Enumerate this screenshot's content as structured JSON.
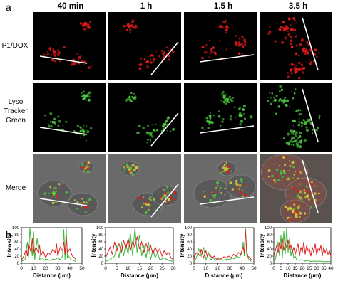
{
  "panel_a_label": "a",
  "panel_b_label": "b",
  "columns": [
    "40 min",
    "1 h",
    "1.5 h",
    "3.5 h"
  ],
  "rows": [
    {
      "label_lines": [
        "P1/DOX"
      ],
      "channel": "red"
    },
    {
      "label_lines": [
        "Lyso",
        "Tracker",
        "Green"
      ],
      "channel": "green"
    },
    {
      "label_lines": [
        "Merge"
      ],
      "channel": "merge"
    }
  ],
  "colors": {
    "red": "#e11a1a",
    "green": "#49c43f",
    "line": "#ffffff",
    "plot_red": "#e02020",
    "plot_green": "#3cb83c"
  },
  "chart_data": [
    {
      "type": "line",
      "xlabel": "Distance (μm)",
      "ylabel": "Intensity",
      "xlim": [
        0,
        50
      ],
      "ylim": [
        0,
        100
      ],
      "xticks": [
        0,
        10,
        20,
        30,
        40,
        50
      ],
      "yticks": [
        0,
        20,
        40,
        60,
        80,
        100
      ],
      "series": [
        {
          "color": "green",
          "x": [
            0,
            3,
            5,
            6,
            7,
            9,
            10,
            11,
            13,
            15,
            17,
            19,
            20,
            22,
            24,
            26,
            28,
            30,
            32,
            34,
            35,
            36,
            37,
            38,
            39,
            41,
            43,
            45
          ],
          "y": [
            5,
            10,
            60,
            15,
            100,
            20,
            90,
            10,
            70,
            10,
            15,
            8,
            12,
            10,
            8,
            12,
            10,
            15,
            10,
            20,
            95,
            10,
            100,
            15,
            20,
            10,
            8,
            5
          ]
        },
        {
          "color": "red",
          "x": [
            0,
            2,
            4,
            5,
            6,
            8,
            9,
            10,
            12,
            14,
            15,
            16,
            18,
            20,
            22,
            24,
            26,
            28,
            29,
            30,
            32,
            34,
            35,
            36,
            37,
            38,
            40,
            42,
            44,
            45
          ],
          "y": [
            8,
            20,
            40,
            20,
            55,
            30,
            70,
            25,
            45,
            30,
            50,
            20,
            35,
            15,
            30,
            25,
            40,
            30,
            55,
            20,
            45,
            35,
            60,
            25,
            75,
            30,
            40,
            20,
            15,
            10
          ]
        }
      ]
    },
    {
      "type": "line",
      "xlabel": "Distance (μm)",
      "ylabel": "Intensity",
      "xlim": [
        0,
        30
      ],
      "ylim": [
        0,
        100
      ],
      "xticks": [
        0,
        5,
        10,
        15,
        20,
        25,
        30
      ],
      "yticks": [
        0,
        20,
        40,
        60,
        80,
        100
      ],
      "series": [
        {
          "color": "green",
          "x": [
            0,
            2,
            4,
            5,
            6,
            7,
            8,
            9,
            10,
            11,
            12,
            13,
            14,
            15,
            16,
            17,
            18,
            19,
            20,
            21,
            22,
            23,
            24,
            26,
            28,
            30
          ],
          "y": [
            5,
            10,
            20,
            50,
            15,
            60,
            20,
            55,
            25,
            85,
            20,
            100,
            30,
            80,
            20,
            50,
            15,
            60,
            10,
            40,
            15,
            30,
            10,
            15,
            8,
            5
          ]
        },
        {
          "color": "red",
          "x": [
            0,
            1,
            2,
            3,
            4,
            5,
            6,
            7,
            8,
            9,
            10,
            11,
            12,
            13,
            14,
            15,
            16,
            17,
            18,
            19,
            20,
            21,
            22,
            23,
            24,
            25,
            26,
            27,
            28,
            29,
            30
          ],
          "y": [
            15,
            30,
            45,
            25,
            60,
            35,
            55,
            30,
            65,
            40,
            70,
            35,
            60,
            45,
            75,
            40,
            60,
            30,
            55,
            35,
            50,
            25,
            45,
            30,
            40,
            20,
            35,
            25,
            30,
            15,
            10
          ]
        }
      ]
    },
    {
      "type": "line",
      "xlabel": "Distance (μm)",
      "ylabel": "Intensity",
      "xlim": [
        0,
        50
      ],
      "ylim": [
        0,
        100
      ],
      "xticks": [
        0,
        10,
        20,
        30,
        40,
        50
      ],
      "yticks": [
        0,
        20,
        40,
        60,
        80,
        100
      ],
      "series": [
        {
          "color": "green",
          "x": [
            0,
            2,
            4,
            6,
            8,
            10,
            12,
            14,
            16,
            18,
            20,
            22,
            24,
            26,
            28,
            30,
            32,
            34,
            36,
            38,
            40,
            41,
            42,
            43,
            44,
            46,
            48
          ],
          "y": [
            5,
            15,
            40,
            20,
            45,
            10,
            30,
            10,
            15,
            8,
            12,
            10,
            8,
            10,
            12,
            10,
            15,
            12,
            20,
            15,
            30,
            60,
            20,
            100,
            25,
            10,
            5
          ]
        },
        {
          "color": "red",
          "x": [
            0,
            1,
            3,
            5,
            6,
            8,
            10,
            11,
            13,
            15,
            17,
            19,
            21,
            23,
            25,
            27,
            29,
            31,
            33,
            35,
            37,
            39,
            41,
            42,
            43,
            44,
            45,
            47,
            48
          ],
          "y": [
            10,
            25,
            30,
            20,
            40,
            15,
            35,
            20,
            25,
            15,
            20,
            10,
            15,
            12,
            18,
            15,
            20,
            15,
            25,
            20,
            30,
            25,
            45,
            30,
            95,
            35,
            20,
            15,
            8
          ]
        }
      ]
    },
    {
      "type": "line",
      "xlabel": "Distance (μm)",
      "ylabel": "Intensity",
      "xlim": [
        0,
        40
      ],
      "ylim": [
        0,
        100
      ],
      "xticks": [
        0,
        5,
        10,
        15,
        20,
        25,
        30,
        35,
        40
      ],
      "yticks": [
        0,
        20,
        40,
        60,
        80,
        100
      ],
      "series": [
        {
          "color": "green",
          "x": [
            0,
            1,
            2,
            3,
            4,
            5,
            6,
            7,
            8,
            9,
            10,
            11,
            12,
            13,
            14,
            15,
            16,
            18,
            20,
            22,
            24,
            26,
            28,
            30,
            32,
            34,
            36,
            38,
            40
          ],
          "y": [
            5,
            10,
            30,
            60,
            20,
            80,
            15,
            90,
            25,
            100,
            30,
            70,
            20,
            40,
            15,
            20,
            10,
            8,
            10,
            6,
            8,
            5,
            6,
            5,
            6,
            5,
            4,
            5,
            4
          ]
        },
        {
          "color": "red",
          "x": [
            0,
            1,
            2,
            3,
            4,
            5,
            6,
            7,
            8,
            9,
            10,
            11,
            12,
            13,
            14,
            15,
            16,
            17,
            18,
            19,
            20,
            21,
            22,
            23,
            24,
            25,
            26,
            27,
            28,
            29,
            30,
            31,
            32,
            33,
            34,
            35,
            36,
            37,
            38,
            39,
            40
          ],
          "y": [
            20,
            35,
            50,
            30,
            60,
            40,
            70,
            35,
            55,
            45,
            65,
            40,
            50,
            30,
            45,
            25,
            40,
            55,
            20,
            45,
            30,
            60,
            25,
            50,
            35,
            40,
            20,
            45,
            30,
            55,
            25,
            40,
            35,
            50,
            20,
            45,
            30,
            40,
            25,
            35,
            20
          ]
        }
      ]
    }
  ]
}
